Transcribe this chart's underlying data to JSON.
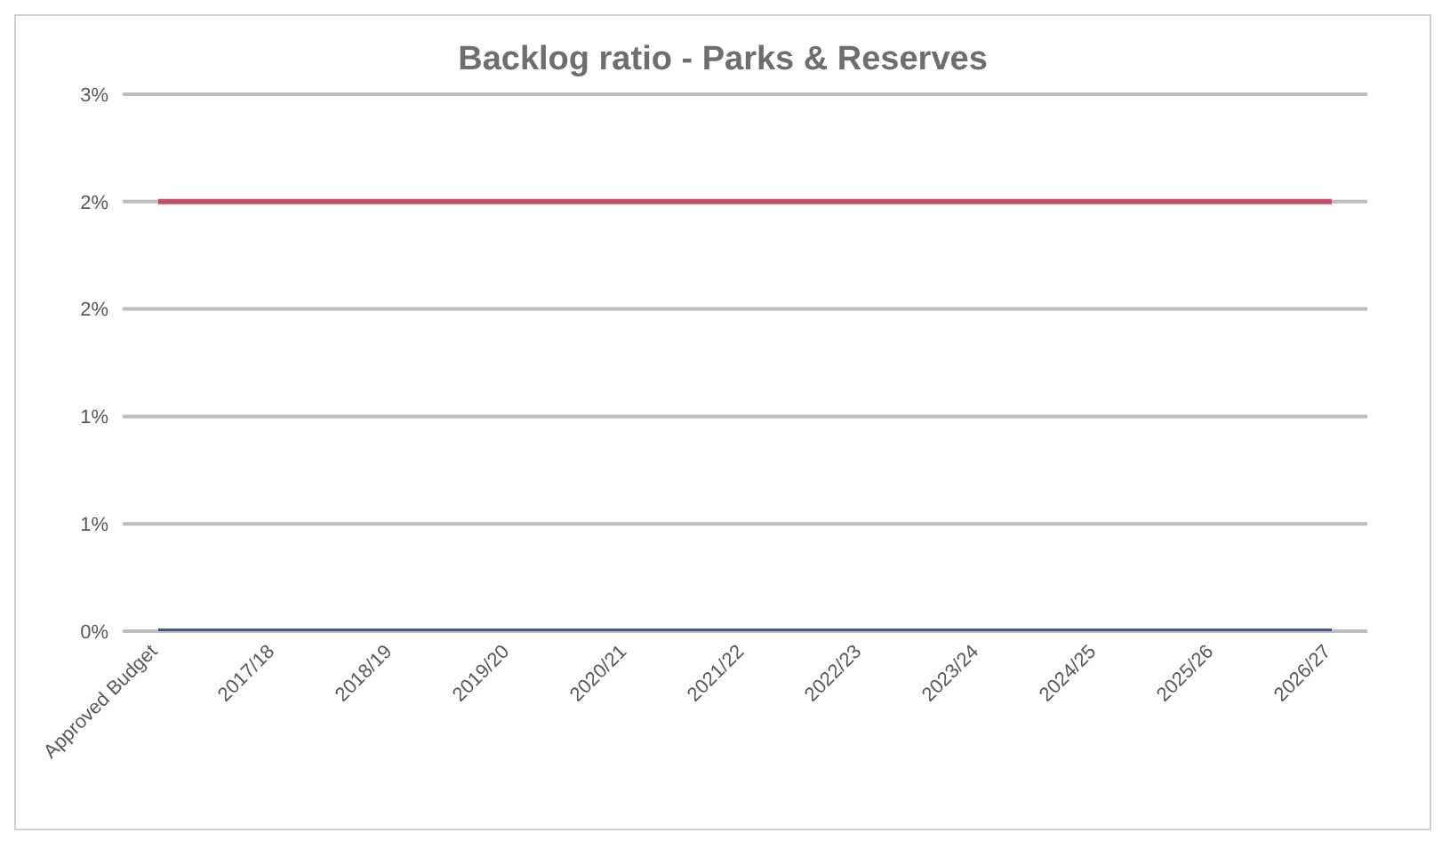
{
  "chart_data": {
    "type": "line",
    "title": "Backlog ratio - Parks & Reserves",
    "categories": [
      "Approved Budget",
      "2017/18",
      "2018/19",
      "2019/20",
      "2020/21",
      "2021/22",
      "2022/23",
      "2023/24",
      "2024/25",
      "2025/26",
      "2026/27"
    ],
    "series": [
      {
        "color": "#c0506e",
        "values": [
          2,
          2,
          2,
          2,
          2,
          2,
          2,
          2,
          2,
          2,
          2
        ]
      },
      {
        "color": "#4a5486",
        "values": [
          0,
          0,
          0,
          0,
          0,
          0,
          0,
          0,
          0,
          0,
          0
        ]
      }
    ],
    "ylim": [
      0,
      2.5
    ],
    "yticks": [
      {
        "value": 0,
        "label": "0%"
      },
      {
        "value": 0.5,
        "label": "1%"
      },
      {
        "value": 1,
        "label": "1%"
      },
      {
        "value": 1.5,
        "label": "2%"
      },
      {
        "value": 2,
        "label": "2%"
      },
      {
        "value": 2.5,
        "label": "3%"
      }
    ],
    "grid": "y",
    "legend": false,
    "marker": "none",
    "line_style": "solid"
  }
}
